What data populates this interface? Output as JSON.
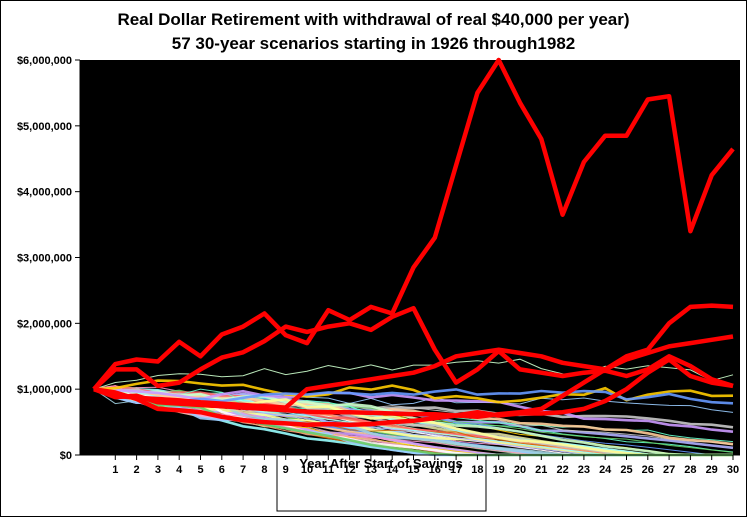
{
  "chart_data": {
    "type": "line",
    "title": "Real Dollar Retirement with withdrawal of real $40,000 per year)",
    "subtitle": "57  30-year scenarios starting in 1926 through1982",
    "xlabel": "Year After Start of Savings",
    "ylabel": "",
    "ylim": [
      0,
      6000000
    ],
    "xlim": [
      0,
      30
    ],
    "y_ticks": [
      "$0",
      "$1,000,000",
      "$2,000,000",
      "$3,000,000",
      "$4,000,000",
      "$5,000,000",
      "$6,000,000"
    ],
    "x_ticks": [
      "1",
      "2",
      "3",
      "4",
      "5",
      "6",
      "7",
      "8",
      "9",
      "10",
      "11",
      "12",
      "13",
      "14",
      "15",
      "16",
      "17",
      "18",
      "19",
      "20",
      "21",
      "22",
      "23",
      "24",
      "25",
      "26",
      "27",
      "28",
      "29",
      "30"
    ],
    "plot_background": "#000000",
    "grid": false,
    "legend": "none",
    "highlighted_series_color": "#ff0000",
    "scenario_count": 57,
    "highlighted_series": [
      {
        "values": [
          1000000,
          1380000,
          1450000,
          1420000,
          1720000,
          1500000,
          1830000,
          1950000,
          2150000,
          1820000,
          1700000,
          2200000,
          2050000,
          2250000,
          2150000,
          2850000,
          3300000,
          4400000,
          5500000,
          6200000,
          5350000,
          4800000,
          3650000,
          4450000,
          4850000,
          4850000,
          5400000,
          5450000,
          3400000,
          4250000,
          4650000
        ]
      },
      {
        "values": [
          1000000,
          1300000,
          1300000,
          1050000,
          1100000,
          1300000,
          1480000,
          1560000,
          1730000,
          1950000,
          1870000,
          1950000,
          2000000,
          1900000,
          2100000,
          2230000,
          1600000,
          1100000,
          1300000,
          1580000,
          1300000,
          1250000,
          1200000,
          1250000,
          1280000,
          1200000,
          1300000,
          1500000,
          1350000,
          1150000,
          1050000
        ]
      },
      {
        "values": [
          1000000,
          880000,
          900000,
          800000,
          780000,
          760000,
          740000,
          720000,
          700000,
          680000,
          660000,
          650000,
          650000,
          640000,
          630000,
          620000,
          620000,
          600000,
          650000,
          600000,
          630000,
          630000,
          650000,
          700000,
          820000,
          1000000,
          1250000,
          1450000,
          1200000,
          1100000,
          1050000
        ]
      },
      {
        "values": [
          1000000,
          950000,
          850000,
          700000,
          680000,
          650000,
          580000,
          530000,
          500000,
          480000,
          460000,
          470000,
          460000,
          470000,
          500000,
          520000,
          560000,
          600000,
          580000,
          620000,
          650000,
          700000,
          900000,
          1100000,
          1300000,
          1500000,
          1600000,
          2000000,
          2250000,
          2270000,
          2250000
        ]
      },
      {
        "values": [
          1000000,
          900000,
          870000,
          850000,
          830000,
          800000,
          780000,
          760000,
          740000,
          720000,
          1000000,
          1050000,
          1100000,
          1150000,
          1200000,
          1250000,
          1350000,
          1500000,
          1550000,
          1600000,
          1550000,
          1500000,
          1400000,
          1350000,
          1300000,
          1450000,
          1550000,
          1650000,
          1700000,
          1750000,
          1800000
        ]
      }
    ]
  }
}
